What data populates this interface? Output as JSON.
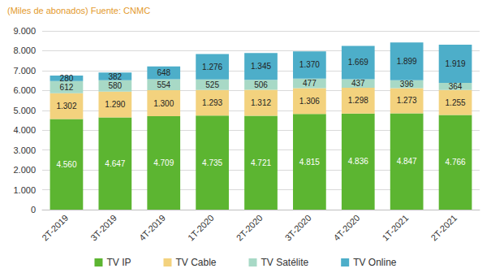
{
  "chart_data": {
    "type": "bar",
    "title": "(Miles de abonados) Fuente: CNMC",
    "categories": [
      "2T-2019",
      "3T-2019",
      "4T-2019",
      "1T-2020",
      "2T-2020",
      "3T-2020",
      "4T-2020",
      "1T-2021",
      "2T-2021"
    ],
    "series": [
      {
        "name": "TV IP",
        "color": "#5cb531",
        "values": [
          4560,
          4647,
          4709,
          4735,
          4721,
          4815,
          4836,
          4847,
          4766
        ],
        "value_labels": [
          "4.560",
          "4.647",
          "4.709",
          "4.735",
          "4.721",
          "4.815",
          "4.836",
          "4.847",
          "4.766"
        ]
      },
      {
        "name": "TV Cable",
        "color": "#f3d27e",
        "values": [
          1302,
          1290,
          1300,
          1293,
          1312,
          1306,
          1298,
          1273,
          1255
        ],
        "value_labels": [
          "1.302",
          "1.290",
          "1.300",
          "1.293",
          "1.312",
          "1.306",
          "1.298",
          "1.273",
          "1.255"
        ]
      },
      {
        "name": "TV Satélite",
        "color": "#a8d9c6",
        "values": [
          612,
          580,
          554,
          525,
          506,
          477,
          437,
          396,
          364
        ],
        "value_labels": [
          "612",
          "580",
          "554",
          "525",
          "506",
          "477",
          "437",
          "396",
          "364"
        ]
      },
      {
        "name": "TV Online",
        "color": "#4daec9",
        "values": [
          280,
          382,
          648,
          1276,
          1345,
          1370,
          1669,
          1899,
          1919
        ],
        "value_labels": [
          "280",
          "382",
          "648",
          "1.276",
          "1.345",
          "1.370",
          "1.669",
          "1.899",
          "1.919"
        ]
      }
    ],
    "ylim": [
      0,
      9000
    ],
    "yticks": [
      {
        "value": 0,
        "label": "0"
      },
      {
        "value": 1000,
        "label": "1.000"
      },
      {
        "value": 2000,
        "label": "2.000"
      },
      {
        "value": 3000,
        "label": "3.000"
      },
      {
        "value": 4000,
        "label": "4.000"
      },
      {
        "value": 5000,
        "label": "5.000"
      },
      {
        "value": 6000,
        "label": "6.000"
      },
      {
        "value": 7000,
        "label": "7.000"
      },
      {
        "value": 8000,
        "label": "8.000"
      },
      {
        "value": 9000,
        "label": "9.000"
      }
    ],
    "stacked": true,
    "data_labels": true,
    "grid": true,
    "legend": "bottom"
  }
}
